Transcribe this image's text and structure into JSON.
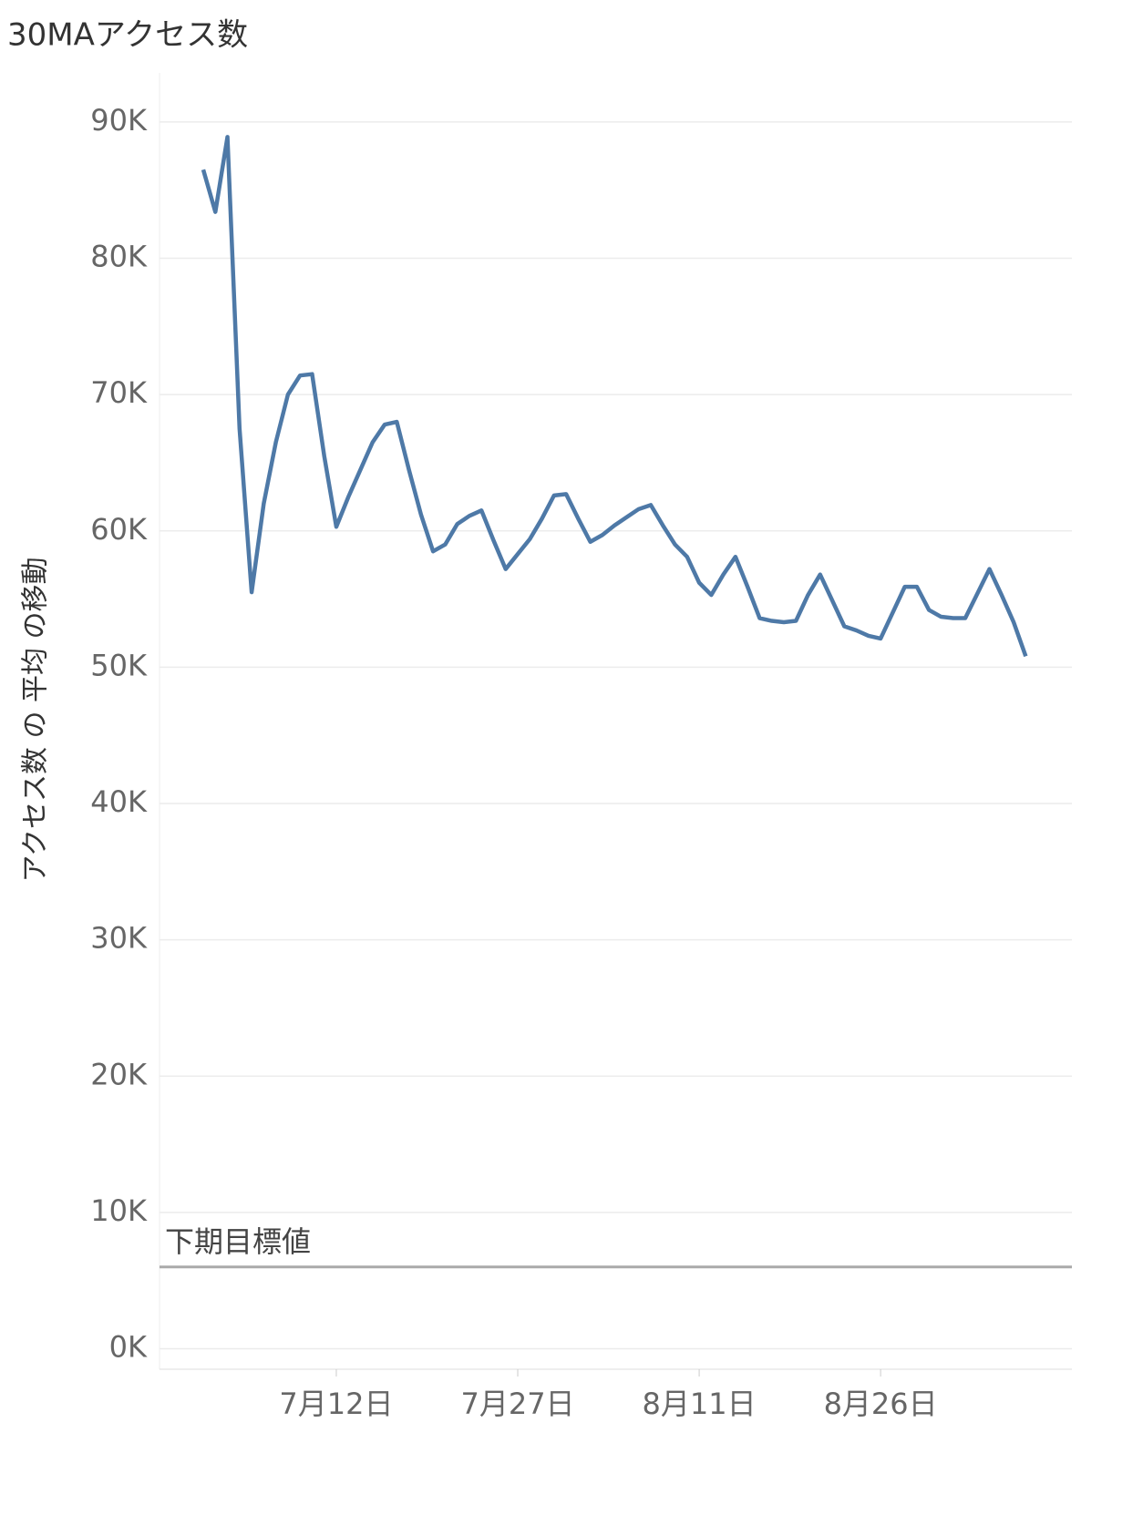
{
  "chart_data": {
    "type": "line",
    "title": "30MAアクセス数",
    "y_label": "アクセス数 の 平均 の移動",
    "x": [
      "7月1日",
      "7月2日",
      "7月3日",
      "7月4日",
      "7月5日",
      "7月6日",
      "7月7日",
      "7月8日",
      "7月9日",
      "7月10日",
      "7月11日",
      "7月12日",
      "7月13日",
      "7月14日",
      "7月15日",
      "7月16日",
      "7月17日",
      "7月18日",
      "7月19日",
      "7月20日",
      "7月21日",
      "7月22日",
      "7月23日",
      "7月24日",
      "7月25日",
      "7月26日",
      "7月27日",
      "7月28日",
      "7月29日",
      "7月30日",
      "7月31日",
      "8月1日",
      "8月2日",
      "8月3日",
      "8月4日",
      "8月5日",
      "8月6日",
      "8月7日",
      "8月8日",
      "8月9日",
      "8月10日",
      "8月11日",
      "8月12日",
      "8月13日",
      "8月14日",
      "8月15日",
      "8月16日",
      "8月17日",
      "8月18日",
      "8月19日",
      "8月20日",
      "8月21日",
      "8月22日",
      "8月23日",
      "8月24日",
      "8月25日",
      "8月26日",
      "8月27日",
      "8月28日",
      "8月29日",
      "8月30日",
      "8月31日",
      "9月1日",
      "9月2日",
      "9月3日",
      "9月4日",
      "9月5日",
      "9月6日",
      "9月7日"
    ],
    "series": [
      {
        "name": "アクセス数 の 平均 の移動",
        "color": "#4e79a7",
        "values": [
          86500,
          83400,
          88900,
          67500,
          55500,
          62000,
          66500,
          70000,
          71400,
          71500,
          65500,
          60300,
          62500,
          64500,
          66500,
          67800,
          68000,
          64500,
          61200,
          58500,
          59000,
          60500,
          61100,
          61500,
          59300,
          57200,
          58300,
          59400,
          60900,
          62600,
          62700,
          60900,
          59200,
          59700,
          60400,
          61000,
          61600,
          61900,
          60400,
          59000,
          58100,
          56200,
          55300,
          56800,
          58100,
          55900,
          53600,
          53400,
          53300,
          53400,
          55300,
          56800,
          54900,
          53000,
          52700,
          52300,
          52100,
          54000,
          55900,
          55900,
          54200,
          53700,
          53600,
          53600,
          55400,
          57200,
          55300,
          53300,
          50800
        ]
      }
    ],
    "ylim": [
      -1500,
      93600
    ],
    "yticks": [
      {
        "value": 0,
        "label": "0K"
      },
      {
        "value": 10000,
        "label": "10K"
      },
      {
        "value": 20000,
        "label": "20K"
      },
      {
        "value": 30000,
        "label": "30K"
      },
      {
        "value": 40000,
        "label": "40K"
      },
      {
        "value": 50000,
        "label": "50K"
      },
      {
        "value": 60000,
        "label": "60K"
      },
      {
        "value": 70000,
        "label": "70K"
      },
      {
        "value": 80000,
        "label": "80K"
      },
      {
        "value": 90000,
        "label": "90K"
      }
    ],
    "xticks": [
      "7月12日",
      "7月27日",
      "8月11日",
      "8月26日"
    ],
    "grid": true,
    "reference_line": {
      "label": "下期目標値",
      "value": 6000,
      "color": "#aaaaaa"
    }
  }
}
